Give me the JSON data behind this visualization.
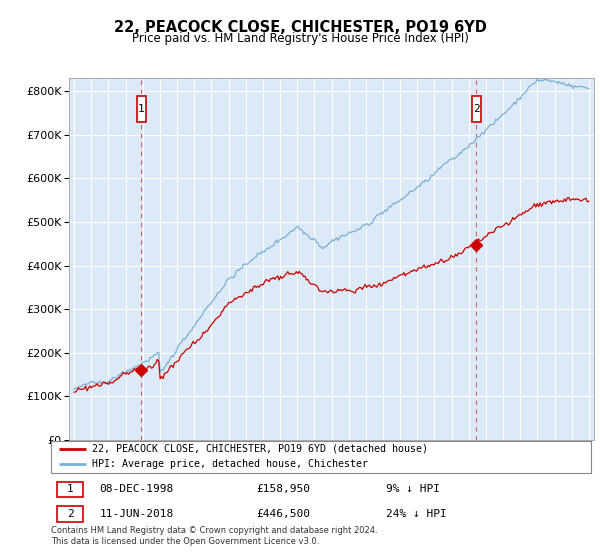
{
  "title": "22, PEACOCK CLOSE, CHICHESTER, PO19 6YD",
  "subtitle": "Price paid vs. HM Land Registry's House Price Index (HPI)",
  "legend_line1": "22, PEACOCK CLOSE, CHICHESTER, PO19 6YD (detached house)",
  "legend_line2": "HPI: Average price, detached house, Chichester",
  "note": "Contains HM Land Registry data © Crown copyright and database right 2024.\nThis data is licensed under the Open Government Licence v3.0.",
  "annotation1_date": "08-DEC-1998",
  "annotation1_price": "£158,950",
  "annotation1_hpi": "9% ↓ HPI",
  "annotation2_date": "11-JUN-2018",
  "annotation2_price": "£446,500",
  "annotation2_hpi": "24% ↓ HPI",
  "price_color": "#cc0000",
  "hpi_color": "#7bafd4",
  "plot_bg_color": "#dce9f7",
  "annotation_box_color": "#cc0000",
  "ylim": [
    0,
    830000
  ],
  "yticks": [
    0,
    100000,
    200000,
    300000,
    400000,
    500000,
    600000,
    700000,
    800000
  ],
  "x_start_year": 1995,
  "x_end_year": 2025,
  "purchase1_year": 1998.92,
  "purchase1_price": 158950,
  "purchase2_year": 2018.44,
  "purchase2_price": 446500
}
